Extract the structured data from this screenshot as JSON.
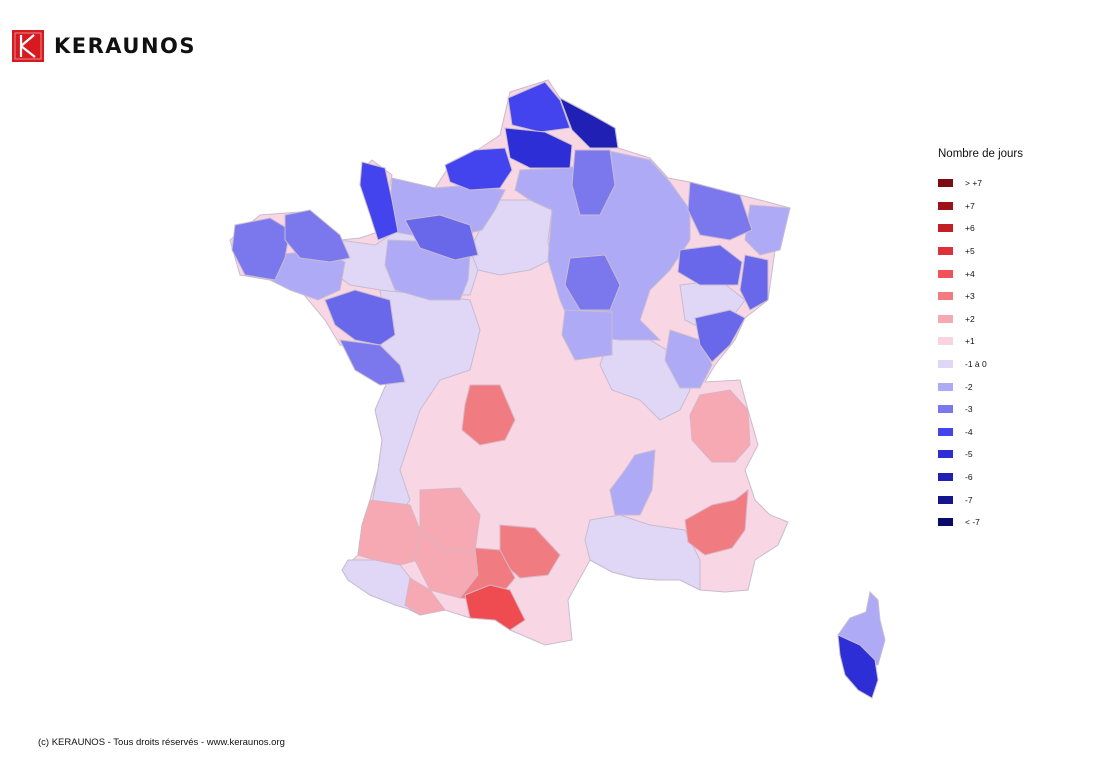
{
  "brand": {
    "name": "KERAUNOS",
    "accent": "#d71920"
  },
  "legend": {
    "title": "Nombre de jours",
    "items": [
      {
        "label": "> +7",
        "color": "#7a0c12"
      },
      {
        "label": "+7",
        "color": "#9d1118"
      },
      {
        "label": "+6",
        "color": "#c21f26"
      },
      {
        "label": "+5",
        "color": "#dd3038"
      },
      {
        "label": "+4",
        "color": "#ef5358"
      },
      {
        "label": "+3",
        "color": "#f07c82"
      },
      {
        "label": "+2",
        "color": "#f6a9b2"
      },
      {
        "label": "+1",
        "color": "#fbd3e0"
      },
      {
        "label": "-1 à 0",
        "color": "#e0d6f6"
      },
      {
        "label": "-2",
        "color": "#aeaaf6"
      },
      {
        "label": "-3",
        "color": "#7b78ee"
      },
      {
        "label": "-4",
        "color": "#4444ee"
      },
      {
        "label": "-5",
        "color": "#2e2ed6"
      },
      {
        "label": "-6",
        "color": "#2020b4"
      },
      {
        "label": "-7",
        "color": "#15158f"
      },
      {
        "label": "< -7",
        "color": "#0a0a6b"
      }
    ]
  },
  "footer": {
    "copyright": "(c) KERAUNOS - Tous droits réservés - www.keraunos.org"
  },
  "map": {
    "country_base_color": "#f8d6e3",
    "border_color": "#b8b8c8"
  }
}
